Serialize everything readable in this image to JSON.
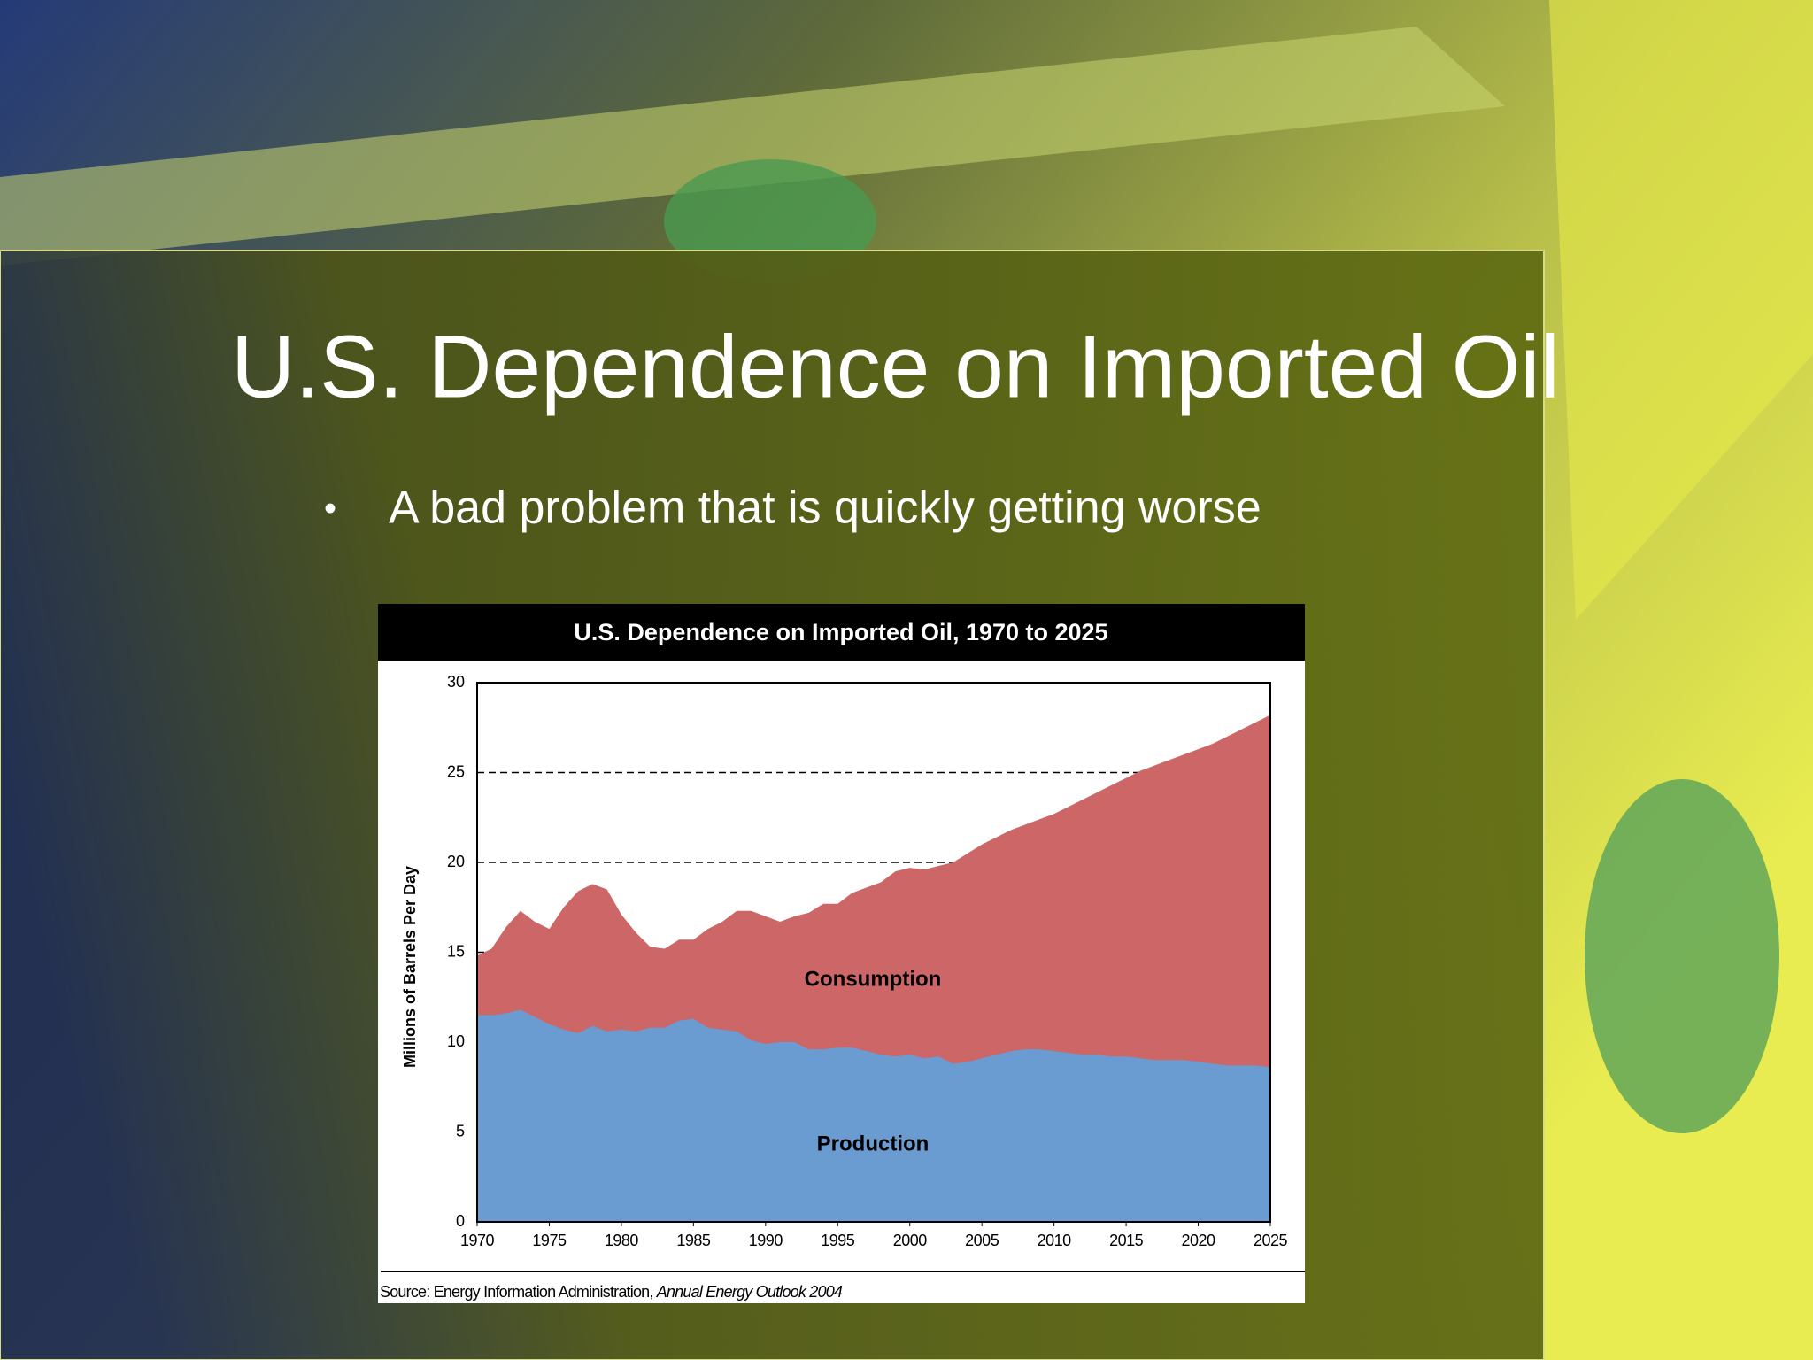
{
  "slide": {
    "title": "U.S. Dependence on Imported Oil",
    "bullets": [
      "A bad problem that is quickly getting worse"
    ]
  },
  "chart_data": {
    "type": "area",
    "title": "U.S. Dependence on Imported Oil, 1970 to 2025",
    "y_label": "Millions of Barrels Per Day",
    "source": {
      "text": "Source: Energy Information Administration,",
      "publication": "Annual Energy Outlook 2004"
    },
    "x": [
      1970,
      1971,
      1972,
      1973,
      1974,
      1975,
      1976,
      1977,
      1978,
      1979,
      1980,
      1981,
      1982,
      1983,
      1984,
      1985,
      1986,
      1987,
      1988,
      1989,
      1990,
      1991,
      1992,
      1993,
      1994,
      1995,
      1996,
      1997,
      1998,
      1999,
      2000,
      2001,
      2002,
      2003,
      2004,
      2005,
      2006,
      2007,
      2008,
      2009,
      2010,
      2011,
      2012,
      2013,
      2014,
      2015,
      2016,
      2017,
      2018,
      2019,
      2020,
      2021,
      2022,
      2023,
      2024,
      2025
    ],
    "series": [
      {
        "name": "Consumption",
        "color": "#cd6666",
        "values": [
          14.8,
          15.2,
          16.4,
          17.3,
          16.7,
          16.3,
          17.5,
          18.4,
          18.8,
          18.5,
          17.1,
          16.1,
          15.3,
          15.2,
          15.7,
          15.7,
          16.3,
          16.7,
          17.3,
          17.3,
          17.0,
          16.7,
          17.0,
          17.2,
          17.7,
          17.7,
          18.3,
          18.6,
          18.9,
          19.5,
          19.7,
          19.6,
          19.8,
          20.0,
          20.5,
          21.0,
          21.4,
          21.8,
          22.1,
          22.4,
          22.7,
          23.1,
          23.5,
          23.9,
          24.3,
          24.7,
          25.1,
          25.4,
          25.7,
          26.0,
          26.3,
          26.6,
          27.0,
          27.4,
          27.8,
          28.2
        ]
      },
      {
        "name": "Production",
        "color": "#6a9bd1",
        "values": [
          11.5,
          11.5,
          11.6,
          11.8,
          11.4,
          11.0,
          10.7,
          10.5,
          10.9,
          10.6,
          10.7,
          10.6,
          10.8,
          10.8,
          11.2,
          11.3,
          10.8,
          10.7,
          10.6,
          10.1,
          9.9,
          10.0,
          10.0,
          9.6,
          9.6,
          9.7,
          9.7,
          9.5,
          9.3,
          9.2,
          9.3,
          9.1,
          9.2,
          8.8,
          8.9,
          9.1,
          9.3,
          9.5,
          9.6,
          9.6,
          9.5,
          9.4,
          9.3,
          9.3,
          9.2,
          9.2,
          9.1,
          9.0,
          9.0,
          9.0,
          8.9,
          8.8,
          8.7,
          8.7,
          8.7,
          8.6
        ]
      }
    ],
    "xlim": [
      1970,
      2025
    ],
    "xticks": [
      1970,
      1975,
      1980,
      1985,
      1990,
      1995,
      2000,
      2005,
      2010,
      2015,
      2020,
      2025
    ],
    "ylim": [
      0,
      30
    ],
    "yticks": [
      0,
      5,
      10,
      15,
      20,
      25,
      30
    ],
    "grid": true
  }
}
